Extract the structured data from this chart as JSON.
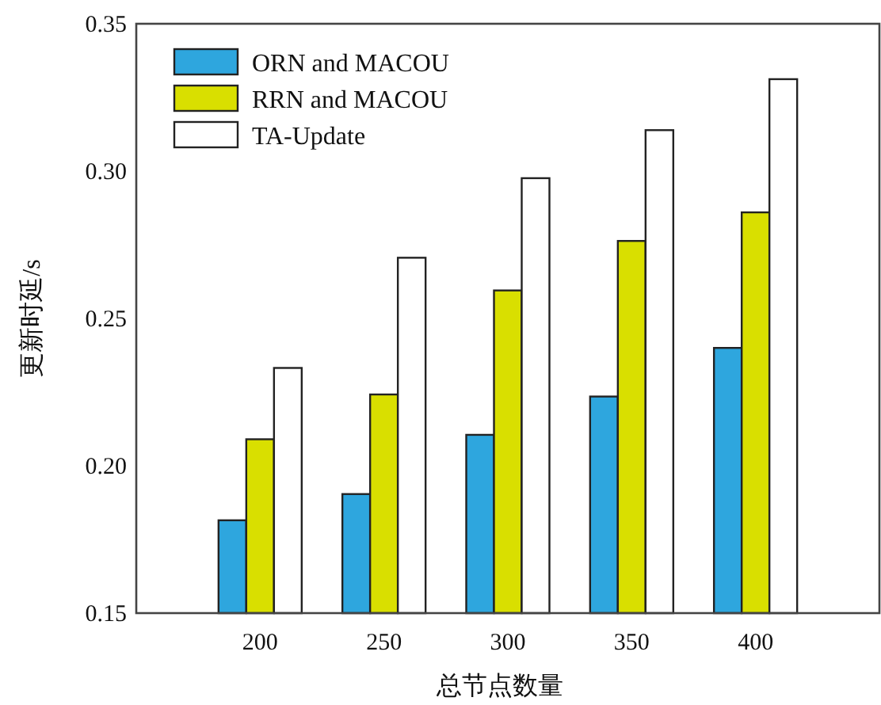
{
  "chart_data": {
    "type": "bar",
    "xlabel": "总节点数量",
    "ylabel": "更新时延/s",
    "categories": [
      "200",
      "250",
      "300",
      "350",
      "400"
    ],
    "series": [
      {
        "name": "ORN and MACOU",
        "color": "#2ea6de",
        "values": [
          0.1815,
          0.1904,
          0.2105,
          0.2235,
          0.24
        ]
      },
      {
        "name": "RRN and MACOU",
        "color": "#d9df00",
        "values": [
          0.209,
          0.2242,
          0.2595,
          0.2763,
          0.286
        ]
      },
      {
        "name": "TA-Update",
        "color": "#ffffff",
        "values": [
          0.2332,
          0.2706,
          0.2976,
          0.3139,
          0.3312
        ]
      }
    ],
    "ylim": [
      0.15,
      0.35
    ],
    "yticks": [
      0.15,
      {
        "value": 0.2,
        "label": "0.20"
      },
      0.25,
      {
        "value": 0.3,
        "label": "0.30"
      },
      0.35
    ],
    "legend": "top left"
  }
}
